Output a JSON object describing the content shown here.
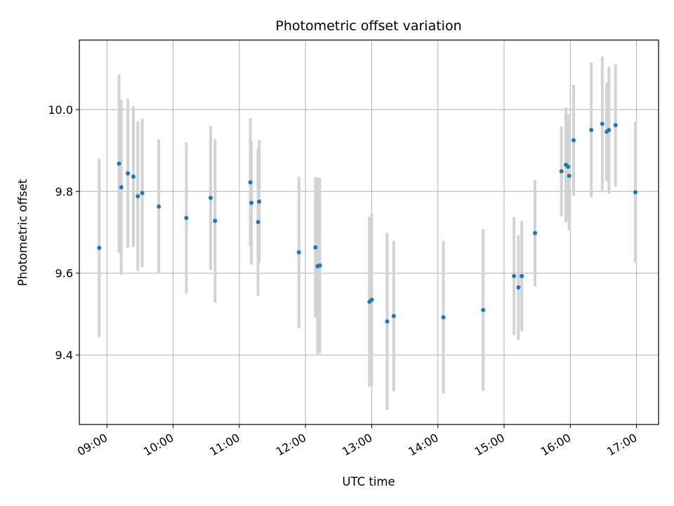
{
  "chart_data": {
    "type": "scatter",
    "title": "Photometric offset variation",
    "xlabel": "UTC time",
    "ylabel": "Photometric offset",
    "xlim": [
      "08:35",
      "17:20"
    ],
    "ylim": [
      9.23,
      10.17
    ],
    "x_ticks": [
      "09:00",
      "10:00",
      "11:00",
      "12:00",
      "13:00",
      "14:00",
      "15:00",
      "16:00",
      "17:00"
    ],
    "y_ticks": [
      "9.4",
      "9.6",
      "9.8",
      "10.0"
    ],
    "grid": true,
    "marker_color": "#1f77b4",
    "errorbar_color": "#d3d3d3",
    "points": [
      {
        "x": "08:53",
        "y": 9.662,
        "yerr": 0.218
      },
      {
        "x": "09:11",
        "y": 9.868,
        "yerr": 0.218
      },
      {
        "x": "09:13",
        "y": 9.81,
        "yerr": 0.214
      },
      {
        "x": "09:19",
        "y": 9.844,
        "yerr": 0.182
      },
      {
        "x": "09:24",
        "y": 9.836,
        "yerr": 0.172
      },
      {
        "x": "09:28",
        "y": 9.788,
        "yerr": 0.183
      },
      {
        "x": "09:32",
        "y": 9.796,
        "yerr": 0.182
      },
      {
        "x": "09:47",
        "y": 9.763,
        "yerr": 0.164
      },
      {
        "x": "10:12",
        "y": 9.735,
        "yerr": 0.185
      },
      {
        "x": "10:34",
        "y": 9.784,
        "yerr": 0.176
      },
      {
        "x": "10:38",
        "y": 9.728,
        "yerr": 0.2
      },
      {
        "x": "11:10",
        "y": 9.822,
        "yerr": 0.157
      },
      {
        "x": "11:11",
        "y": 9.772,
        "yerr": 0.151
      },
      {
        "x": "11:17",
        "y": 9.725,
        "yerr": 0.18
      },
      {
        "x": "11:18",
        "y": 9.775,
        "yerr": 0.15
      },
      {
        "x": "11:54",
        "y": 9.651,
        "yerr": 0.185
      },
      {
        "x": "12:09",
        "y": 9.663,
        "yerr": 0.172
      },
      {
        "x": "12:11",
        "y": 9.617,
        "yerr": 0.217
      },
      {
        "x": "12:13",
        "y": 9.619,
        "yerr": 0.214
      },
      {
        "x": "12:58",
        "y": 9.53,
        "yerr": 0.208
      },
      {
        "x": "13:00",
        "y": 9.535,
        "yerr": 0.21
      },
      {
        "x": "13:14",
        "y": 9.482,
        "yerr": 0.216
      },
      {
        "x": "13:20",
        "y": 9.495,
        "yerr": 0.184
      },
      {
        "x": "14:05",
        "y": 9.492,
        "yerr": 0.186
      },
      {
        "x": "14:41",
        "y": 9.51,
        "yerr": 0.198
      },
      {
        "x": "15:09",
        "y": 9.593,
        "yerr": 0.144
      },
      {
        "x": "15:13",
        "y": 9.565,
        "yerr": 0.128
      },
      {
        "x": "15:16",
        "y": 9.593,
        "yerr": 0.135
      },
      {
        "x": "15:28",
        "y": 9.698,
        "yerr": 0.13
      },
      {
        "x": "15:52",
        "y": 9.849,
        "yerr": 0.11
      },
      {
        "x": "15:56",
        "y": 9.865,
        "yerr": 0.14
      },
      {
        "x": "15:58",
        "y": 9.86,
        "yerr": 0.13
      },
      {
        "x": "15:59",
        "y": 9.838,
        "yerr": 0.133
      },
      {
        "x": "16:03",
        "y": 9.925,
        "yerr": 0.135
      },
      {
        "x": "16:19",
        "y": 9.95,
        "yerr": 0.165
      },
      {
        "x": "16:29",
        "y": 9.965,
        "yerr": 0.165
      },
      {
        "x": "16:33",
        "y": 9.946,
        "yerr": 0.12
      },
      {
        "x": "16:35",
        "y": 9.95,
        "yerr": 0.155
      },
      {
        "x": "16:41",
        "y": 9.962,
        "yerr": 0.15
      },
      {
        "x": "16:59",
        "y": 9.798,
        "yerr": 0.173
      }
    ]
  }
}
